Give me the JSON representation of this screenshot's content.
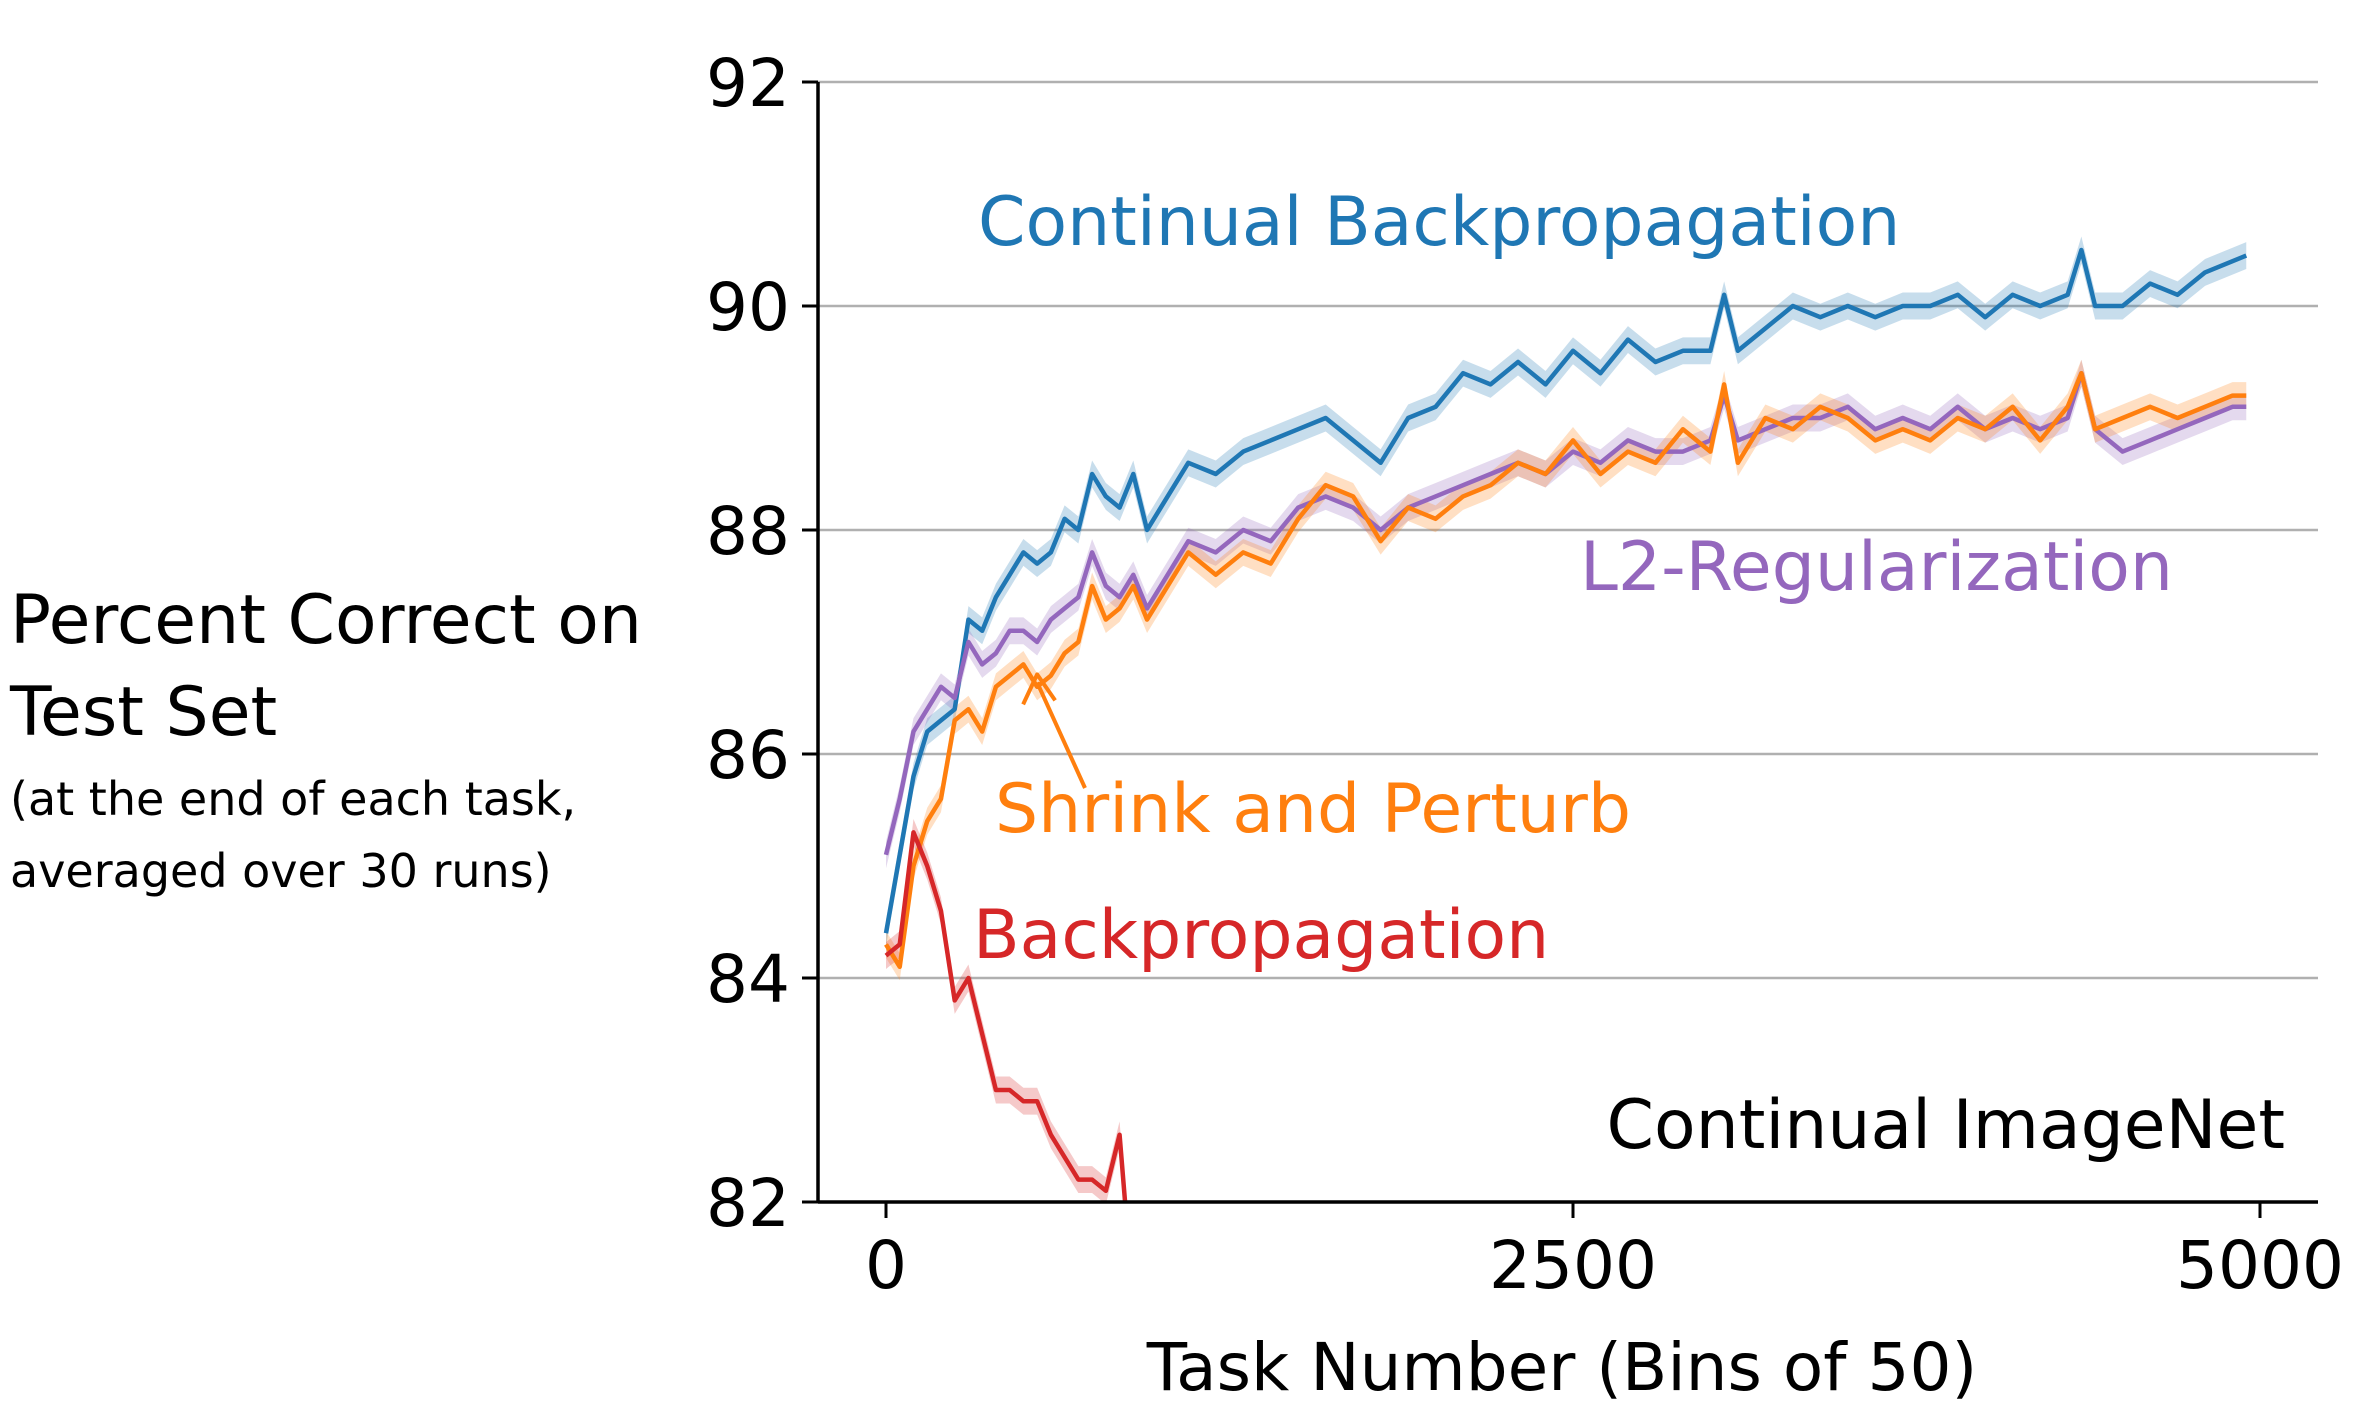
{
  "chart_data": {
    "type": "line",
    "title": "Continual ImageNet",
    "xlabel": "Task Number (Bins of 50)",
    "ylabel": "Percent Correct on Test Set",
    "ylabel_note": "(at the end of each task, averaged over 30 runs)",
    "xlim": [
      -250,
      5200
    ],
    "ylim": [
      82,
      92
    ],
    "xticks": [
      0,
      2500,
      5000
    ],
    "yticks": [
      82,
      84,
      86,
      88,
      90,
      92
    ],
    "grid": "horizontal",
    "legend": "inline-labels",
    "series": [
      {
        "name": "Continual Backpropagation",
        "color": "#1f77b4",
        "x": [
          0,
          50,
          100,
          150,
          200,
          250,
          300,
          350,
          400,
          450,
          500,
          550,
          600,
          650,
          700,
          750,
          800,
          850,
          900,
          950,
          1000,
          1100,
          1200,
          1300,
          1400,
          1500,
          1600,
          1700,
          1800,
          1900,
          2000,
          2100,
          2200,
          2300,
          2400,
          2500,
          2600,
          2700,
          2800,
          2900,
          3000,
          3050,
          3100,
          3200,
          3300,
          3400,
          3500,
          3600,
          3700,
          3800,
          3900,
          4000,
          4100,
          4200,
          4300,
          4350,
          4400,
          4500,
          4600,
          4700,
          4800,
          4900,
          4950
        ],
        "values": [
          84.4,
          85.1,
          85.8,
          86.2,
          86.3,
          86.4,
          87.2,
          87.1,
          87.4,
          87.6,
          87.8,
          87.7,
          87.8,
          88.1,
          88.0,
          88.5,
          88.3,
          88.2,
          88.5,
          88.0,
          88.2,
          88.6,
          88.5,
          88.7,
          88.8,
          88.9,
          89.0,
          88.8,
          88.6,
          89.0,
          89.1,
          89.4,
          89.3,
          89.5,
          89.3,
          89.6,
          89.4,
          89.7,
          89.5,
          89.6,
          89.6,
          90.1,
          89.6,
          89.8,
          90.0,
          89.9,
          90.0,
          89.9,
          90.0,
          90.0,
          90.1,
          89.9,
          90.1,
          90.0,
          90.1,
          90.5,
          90.0,
          90.0,
          90.2,
          90.1,
          90.3,
          90.4,
          90.45
        ]
      },
      {
        "name": "L2-Regularization",
        "color": "#9467bd",
        "x": [
          0,
          50,
          100,
          150,
          200,
          250,
          300,
          350,
          400,
          450,
          500,
          550,
          600,
          650,
          700,
          750,
          800,
          850,
          900,
          950,
          1000,
          1100,
          1200,
          1300,
          1400,
          1500,
          1600,
          1700,
          1800,
          1900,
          2000,
          2100,
          2200,
          2300,
          2400,
          2500,
          2600,
          2700,
          2800,
          2900,
          3000,
          3050,
          3100,
          3200,
          3300,
          3400,
          3500,
          3600,
          3700,
          3800,
          3900,
          4000,
          4100,
          4200,
          4300,
          4350,
          4400,
          4500,
          4600,
          4700,
          4800,
          4900,
          4950
        ],
        "values": [
          85.1,
          85.6,
          86.2,
          86.4,
          86.6,
          86.5,
          87.0,
          86.8,
          86.9,
          87.1,
          87.1,
          87.0,
          87.2,
          87.3,
          87.4,
          87.8,
          87.5,
          87.4,
          87.6,
          87.3,
          87.5,
          87.9,
          87.8,
          88.0,
          87.9,
          88.2,
          88.3,
          88.2,
          88.0,
          88.2,
          88.3,
          88.4,
          88.5,
          88.6,
          88.5,
          88.7,
          88.6,
          88.8,
          88.7,
          88.7,
          88.8,
          89.2,
          88.8,
          88.9,
          89.0,
          89.0,
          89.1,
          88.9,
          89.0,
          88.9,
          89.1,
          88.9,
          89.0,
          88.9,
          89.0,
          89.4,
          88.9,
          88.7,
          88.8,
          88.9,
          89.0,
          89.1,
          89.1
        ]
      },
      {
        "name": "Shrink and Perturb",
        "color": "#ff7f0e",
        "x": [
          0,
          50,
          100,
          150,
          200,
          250,
          300,
          350,
          400,
          450,
          500,
          550,
          600,
          650,
          700,
          750,
          800,
          850,
          900,
          950,
          1000,
          1100,
          1200,
          1300,
          1400,
          1500,
          1600,
          1700,
          1800,
          1900,
          2000,
          2100,
          2200,
          2300,
          2400,
          2500,
          2600,
          2700,
          2800,
          2900,
          3000,
          3050,
          3100,
          3200,
          3300,
          3400,
          3500,
          3600,
          3700,
          3800,
          3900,
          4000,
          4100,
          4200,
          4300,
          4350,
          4400,
          4500,
          4600,
          4700,
          4800,
          4900,
          4950
        ],
        "values": [
          84.3,
          84.1,
          85.0,
          85.4,
          85.6,
          86.3,
          86.4,
          86.2,
          86.6,
          86.7,
          86.8,
          86.6,
          86.7,
          86.9,
          87.0,
          87.5,
          87.2,
          87.3,
          87.5,
          87.2,
          87.4,
          87.8,
          87.6,
          87.8,
          87.7,
          88.1,
          88.4,
          88.3,
          87.9,
          88.2,
          88.1,
          88.3,
          88.4,
          88.6,
          88.5,
          88.8,
          88.5,
          88.7,
          88.6,
          88.9,
          88.7,
          89.3,
          88.6,
          89.0,
          88.9,
          89.1,
          89.0,
          88.8,
          88.9,
          88.8,
          89.0,
          88.9,
          89.1,
          88.8,
          89.1,
          89.4,
          88.9,
          89.0,
          89.1,
          89.0,
          89.1,
          89.2,
          89.2
        ]
      },
      {
        "name": "Backpropagation",
        "color": "#d62728",
        "x": [
          0,
          50,
          100,
          150,
          200,
          250,
          300,
          350,
          400,
          450,
          500,
          550,
          600,
          650,
          700,
          750,
          800,
          850,
          870
        ],
        "values": [
          84.2,
          84.3,
          85.3,
          85.0,
          84.6,
          83.8,
          84.0,
          83.5,
          83.0,
          83.0,
          82.9,
          82.9,
          82.6,
          82.4,
          82.2,
          82.2,
          82.1,
          82.6,
          82.0
        ]
      }
    ],
    "annotations": [
      {
        "text": "Continual Backpropagation",
        "color": "#1f77b4"
      },
      {
        "text": "L2-Regularization",
        "color": "#9467bd"
      },
      {
        "text": "Shrink and Perturb",
        "color": "#ff7f0e"
      },
      {
        "text": "Backpropagation",
        "color": "#d62728"
      }
    ]
  }
}
